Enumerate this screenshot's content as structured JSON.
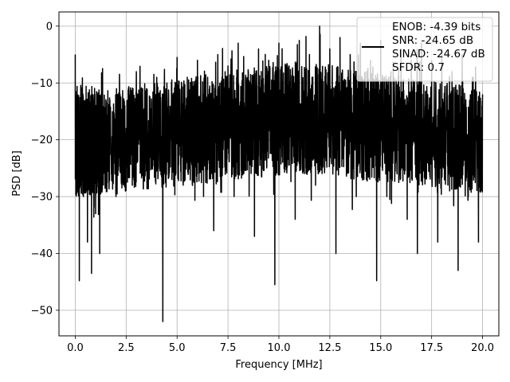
{
  "chart_data": {
    "type": "line",
    "title": "",
    "xlabel": "Frequency [MHz]",
    "ylabel": "PSD [dB]",
    "xlim": [
      -0.8,
      20.8
    ],
    "ylim": [
      -54.5,
      2.5
    ],
    "xticks": [
      0.0,
      2.5,
      5.0,
      7.5,
      10.0,
      12.5,
      15.0,
      17.5,
      20.0
    ],
    "xtick_labels": [
      "0.0",
      "2.5",
      "5.0",
      "7.5",
      "10.0",
      "12.5",
      "15.0",
      "17.5",
      "20.0"
    ],
    "yticks": [
      0,
      -10,
      -20,
      -30,
      -40,
      -50
    ],
    "ytick_labels": [
      "0",
      "−10",
      "−20",
      "−30",
      "−40",
      "−50"
    ],
    "grid": true,
    "legend_position": "top-right",
    "legend_lines": [
      "ENOB: -4.39 bits",
      "SNR: -24.65 dB",
      "SINAD: -24.67 dB",
      "SFDR: 0.7"
    ],
    "line_color": "#000000",
    "series": [
      {
        "x": [
          0.0,
          0.05,
          0.1,
          0.2,
          0.3,
          0.4,
          0.5,
          0.6,
          0.7,
          0.8,
          0.9,
          1.0,
          1.1,
          1.2,
          1.3,
          1.5,
          1.7,
          2.0,
          2.2,
          2.5,
          2.8,
          3.0,
          3.3,
          3.5,
          3.8,
          4.0,
          4.3,
          4.5,
          4.8,
          5.0,
          5.3,
          5.5,
          5.8,
          6.0,
          6.3,
          6.5,
          6.8,
          7.0,
          7.3,
          7.5,
          7.8,
          8.0,
          8.3,
          8.5,
          8.8,
          9.0,
          9.3,
          9.5,
          9.8,
          10.0,
          10.3,
          10.5,
          10.8,
          11.0,
          11.3,
          11.5,
          11.8,
          12.0,
          12.3,
          12.5,
          12.8,
          13.0,
          13.3,
          13.5,
          13.8,
          14.0,
          14.3,
          14.5,
          14.8,
          15.0,
          15.3,
          15.5,
          15.8,
          16.0,
          16.3,
          16.5,
          16.8,
          17.0,
          17.3,
          17.5,
          17.8,
          18.0,
          18.3,
          18.5,
          18.8,
          19.0,
          19.3,
          19.5,
          19.8,
          20.0
        ],
        "values": [
          -5.0,
          -28.0,
          -16.0,
          -44.8,
          -18.0,
          -30.0,
          -13.0,
          -38.0,
          -25.0,
          -43.5,
          -14.0,
          -33.0,
          -12.0,
          -40.0,
          -15.0,
          -22.0,
          -13.0,
          -30.0,
          -12.0,
          -18.0,
          -28.0,
          -8.0,
          -26.0,
          -11.0,
          -20.0,
          -9.0,
          -52.0,
          -10.0,
          -22.0,
          -5.5,
          -28.0,
          -9.0,
          -18.0,
          -6.0,
          -30.0,
          -9.0,
          -36.0,
          -5.0,
          -20.0,
          -7.0,
          -30.0,
          -3.0,
          -25.0,
          -8.0,
          -37.0,
          -4.0,
          -20.0,
          -6.0,
          -45.5,
          -3.0,
          -22.0,
          -7.0,
          -34.0,
          -2.5,
          -20.0,
          -5.0,
          -28.0,
          0.0,
          -22.0,
          -4.0,
          -40.0,
          -2.0,
          -18.0,
          -5.0,
          -30.0,
          -3.0,
          -27.0,
          -6.0,
          -44.8,
          -2.5,
          -30.0,
          -8.0,
          -26.0,
          -4.0,
          -34.0,
          -6.0,
          -40.0,
          -3.0,
          -24.0,
          -6.0,
          -38.0,
          -4.0,
          -28.0,
          -8.0,
          -43.0,
          -5.0,
          -30.0,
          -9.0,
          -38.0,
          -12.0
        ]
      }
    ]
  }
}
